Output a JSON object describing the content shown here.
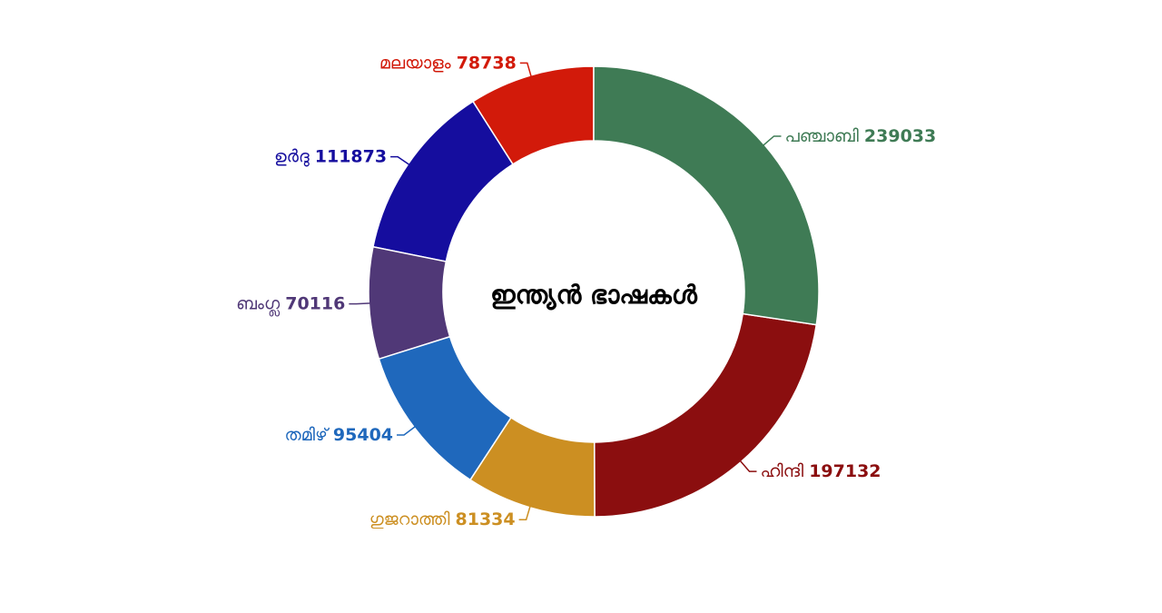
{
  "chart_data": {
    "type": "donut",
    "title": "ഇന്ത്യൻ ഭാഷകൾ",
    "categories": [
      "പഞ്ചാബി",
      "ഹിന്ദി",
      "ഗുജറാത്തി",
      "തമിഴ്",
      "ബംഗ്ല",
      "ഉർദു",
      "മലയാളം"
    ],
    "values": [
      239033,
      197132,
      81334,
      95404,
      70116,
      111873,
      78738
    ],
    "colors": [
      "#3f7b55",
      "#8b0e0f",
      "#cc8f22",
      "#1f68bc",
      "#503877",
      "#150d9e",
      "#d21a0a"
    ]
  }
}
